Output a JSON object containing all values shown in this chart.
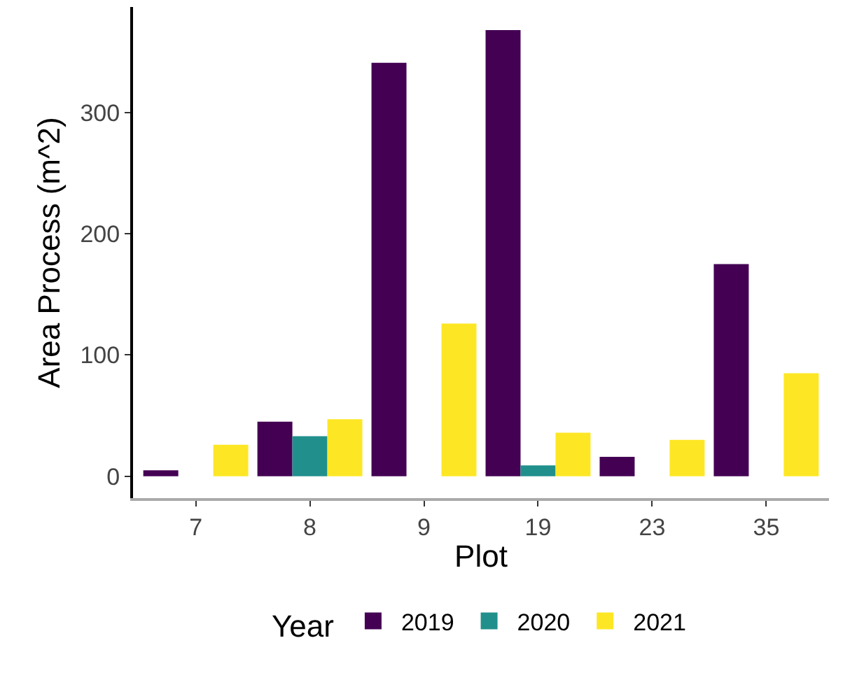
{
  "chart_data": {
    "type": "bar",
    "xlabel": "Plot",
    "ylabel": "Area Process (m^2)",
    "legend_title": "Year",
    "categories": [
      "7",
      "8",
      "9",
      "19",
      "23",
      "35"
    ],
    "series": [
      {
        "name": "2019",
        "color": "#440154",
        "values": [
          5,
          45,
          341,
          368,
          16,
          175
        ]
      },
      {
        "name": "2020",
        "color": "#21908c",
        "values": [
          null,
          33,
          null,
          9,
          null,
          null
        ]
      },
      {
        "name": "2021",
        "color": "#fde725",
        "values": [
          26,
          47,
          126,
          36,
          30,
          85
        ]
      }
    ],
    "ylim": [
      -18,
      387
    ],
    "yticks": [
      0,
      100,
      200,
      300
    ],
    "grid": false,
    "legend": "bottom"
  }
}
